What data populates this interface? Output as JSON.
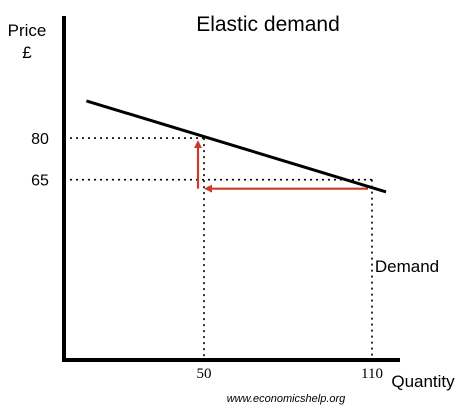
{
  "chart_data": {
    "type": "line",
    "title": "Elastic demand",
    "ylabel": "Price",
    "ylabel_unit": "£",
    "xlabel": "Quantity",
    "xlim": [
      0,
      120
    ],
    "ylim": [
      0,
      124
    ],
    "x_ticks": [
      50,
      110
    ],
    "y_ticks": [
      80,
      65
    ],
    "grid": false,
    "series": [
      {
        "name": "Demand",
        "x": [
          8,
          115
        ],
        "y": [
          93.4,
          60.6
        ]
      }
    ],
    "reference_points": [
      {
        "x": 50,
        "y": 80
      },
      {
        "x": 110,
        "y": 65
      }
    ],
    "arrows": [
      {
        "from": [
          110,
          65
        ],
        "to": [
          50,
          65
        ]
      },
      {
        "from": [
          50,
          65
        ],
        "to": [
          50,
          80
        ]
      }
    ],
    "credit": "www.economicshelp.org",
    "colors": {
      "axis": "#000000",
      "demand_line": "#000000",
      "guide_lines": "#000000",
      "arrows": "#cc3a2a"
    }
  }
}
